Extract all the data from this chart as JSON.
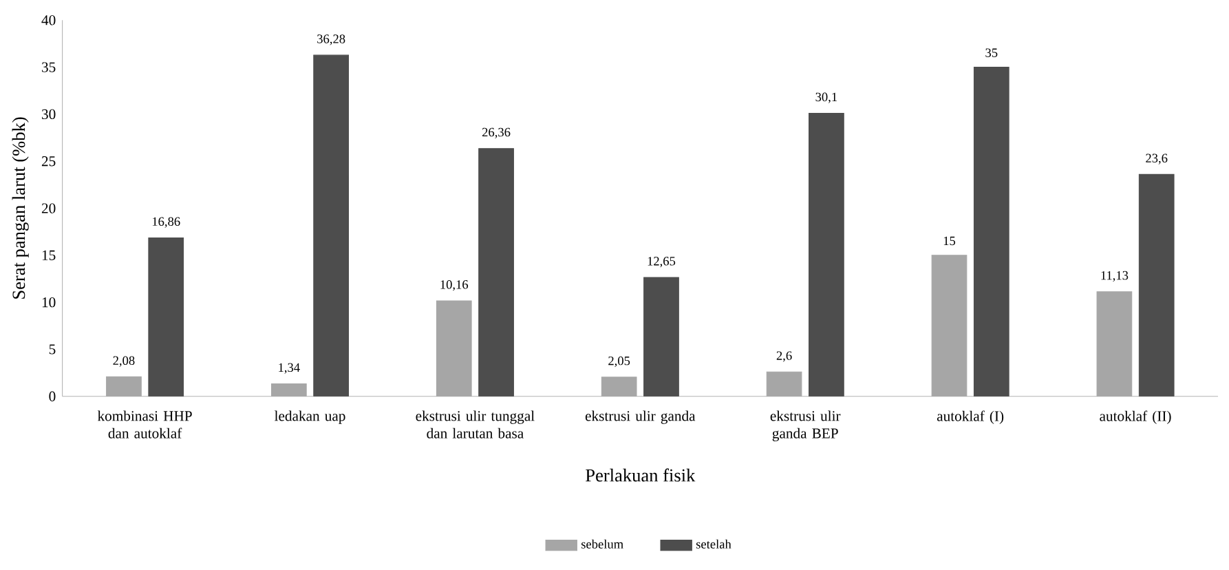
{
  "chart_data": {
    "type": "bar",
    "xlabel": "Perlakuan fisik",
    "ylabel": "Serat pangan larut (%bk)",
    "categories": [
      "kombinasi HHP dan autoklaf",
      "ledakan uap",
      "ekstrusi ulir tunggal dan larutan basa",
      "ekstrusi ulir ganda",
      "ekstrusi ulir ganda BEP",
      "autoklaf (I)",
      "autoklaf (II)"
    ],
    "series": [
      {
        "name": "sebelum",
        "color": "#a6a6a6",
        "values": [
          2.08,
          1.34,
          10.16,
          2.05,
          2.6,
          15,
          11.13
        ],
        "value_labels": [
          "2,08",
          "1,34",
          "10,16",
          "2,05",
          "2,6",
          "15",
          "11,13"
        ]
      },
      {
        "name": "setelah",
        "color": "#4d4d4d",
        "values": [
          16.86,
          36.28,
          26.36,
          12.65,
          30.1,
          35,
          23.6
        ],
        "value_labels": [
          "16,86",
          "36,28",
          "26,36",
          "12,65",
          "30,1",
          "35",
          "23,6"
        ]
      }
    ],
    "ylim": [
      0,
      40
    ],
    "yticks": [
      0,
      5,
      10,
      15,
      20,
      25,
      30,
      35,
      40
    ],
    "legend": "bottom",
    "grid": false
  }
}
